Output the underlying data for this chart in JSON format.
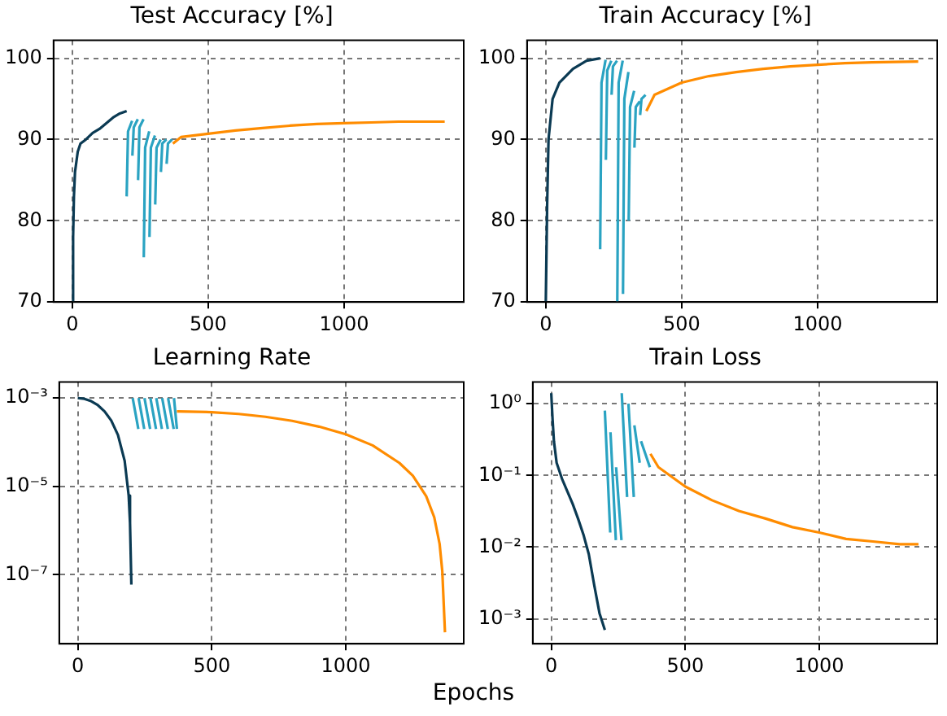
{
  "chart_data": [
    {
      "type": "line",
      "title": "Test Accuracy [%]",
      "xlim": [
        -69,
        1440
      ],
      "xticks": [
        0,
        500,
        1000
      ],
      "ylim": [
        70,
        102.2
      ],
      "yticks": [
        70,
        80,
        90,
        100
      ],
      "grid": true,
      "marker": "none",
      "series": [
        {
          "color": "#0b3a53",
          "x": [
            0,
            3,
            6,
            10,
            20,
            30,
            50,
            75,
            100,
            125,
            150,
            175,
            200
          ],
          "values": [
            70,
            78,
            83,
            86,
            88.5,
            89.5,
            90,
            90.8,
            91.3,
            92,
            92.7,
            93.2,
            93.5
          ]
        },
        {
          "color": "#2aa3c2",
          "x": [
            200,
            205,
            220,
            220.5,
            221,
            226,
            241,
            241.5,
            242,
            247,
            262,
            262.5,
            263,
            268,
            283,
            283.5,
            284,
            289,
            304,
            304.5,
            305,
            310,
            325,
            325.5,
            326,
            331,
            346,
            346.5,
            347,
            352,
            367
          ],
          "values": [
            83,
            91,
            92.3,
            null,
            88,
            91.5,
            92.5,
            null,
            85,
            91.5,
            92.5,
            null,
            75.5,
            89,
            91,
            null,
            78,
            89,
            90.5,
            null,
            82,
            89,
            90,
            null,
            86,
            89.5,
            90,
            null,
            87,
            89.5,
            90
          ]
        },
        {
          "color": "#ff8c00",
          "x": [
            370,
            400,
            500,
            600,
            700,
            800,
            900,
            1000,
            1100,
            1200,
            1300,
            1370
          ],
          "values": [
            89.5,
            90.3,
            90.7,
            91.1,
            91.4,
            91.7,
            91.9,
            92,
            92.1,
            92.2,
            92.2,
            92.2
          ]
        }
      ]
    },
    {
      "type": "line",
      "title": "Train Accuracy [%]",
      "xlim": [
        -69,
        1440
      ],
      "xticks": [
        0,
        500,
        1000
      ],
      "ylim": [
        70,
        102.2
      ],
      "yticks": [
        70,
        80,
        90,
        100
      ],
      "grid": true,
      "marker": "none",
      "series": [
        {
          "color": "#0b3a53",
          "x": [
            0,
            5,
            10,
            25,
            50,
            100,
            150,
            200
          ],
          "values": [
            70,
            82,
            90,
            95,
            97,
            98.7,
            99.7,
            100
          ]
        },
        {
          "color": "#2aa3c2",
          "x": [
            200,
            205,
            220,
            220.5,
            221,
            226,
            241,
            241.5,
            242,
            247,
            262,
            262.5,
            263,
            268,
            283,
            283.5,
            284,
            289,
            304,
            304.5,
            305,
            310,
            325,
            325.5,
            326,
            331,
            346,
            346.5,
            347,
            352,
            367
          ],
          "values": [
            76.5,
            97,
            99.8,
            null,
            87.5,
            98.5,
            99.7,
            null,
            95.5,
            99,
            99.7,
            null,
            70,
            97,
            99.7,
            null,
            71,
            95,
            98.3,
            null,
            80,
            94,
            96,
            null,
            89,
            94,
            94.7,
            null,
            93,
            95,
            95.5
          ]
        },
        {
          "color": "#ff8c00",
          "x": [
            370,
            400,
            500,
            600,
            700,
            800,
            900,
            1000,
            1100,
            1200,
            1370
          ],
          "values": [
            93.5,
            95.5,
            97,
            97.8,
            98.3,
            98.7,
            99,
            99.2,
            99.4,
            99.5,
            99.6
          ]
        }
      ]
    },
    {
      "type": "line",
      "title": "Learning Rate",
      "xlabel": "Epochs",
      "log": "y",
      "xlim": [
        -69,
        1440
      ],
      "xticks": [
        0,
        500,
        1000
      ],
      "ylim": [
        2.75e-09,
        0.0023
      ],
      "yticks": [
        {
          "value": 1e-07,
          "label": "10⁻⁷"
        },
        {
          "value": 1e-05,
          "label": "10⁻⁵"
        },
        {
          "value": 0.001,
          "label": "10⁻³"
        }
      ],
      "grid": true,
      "marker": "none",
      "series": [
        {
          "color": "#0b3a53",
          "x": [
            0,
            25,
            50,
            75,
            100,
            125,
            150,
            175,
            190,
            195,
            200
          ],
          "values": [
            0.001,
            0.00096,
            0.00085,
            0.00069,
            0.0005,
            0.00031,
            0.000146,
            3.8e-05,
            6.2e-06,
            1.5e-06,
            6e-08
          ]
        },
        {
          "color": "#2aa3c2",
          "x": [
            205,
            226,
            226.5,
            227,
            248,
            248.5,
            249,
            270,
            270.5,
            271,
            292,
            292.5,
            293,
            314,
            314.5,
            315,
            336,
            336.5,
            337,
            358,
            358.5,
            359,
            370
          ],
          "values": [
            0.001,
            0.0002,
            null,
            0.001,
            0.0002,
            null,
            0.001,
            0.0002,
            null,
            0.001,
            0.0002,
            null,
            0.001,
            0.0002,
            null,
            0.001,
            0.0002,
            null,
            0.001,
            0.0002,
            null,
            0.001,
            0.0002
          ]
        },
        {
          "color": "#ff8c00",
          "x": [
            370,
            500,
            600,
            700,
            800,
            900,
            1000,
            1100,
            1200,
            1250,
            1300,
            1330,
            1350,
            1360,
            1370
          ],
          "values": [
            0.0005,
            0.00048,
            0.000437,
            0.000377,
            0.000305,
            0.000226,
            0.000151,
            8.5e-05,
            3.4e-05,
            1.75e-05,
            6e-06,
            2e-06,
            5e-07,
            1.2e-07,
            5e-09
          ]
        }
      ]
    },
    {
      "type": "line",
      "title": "Train Loss",
      "log": "y",
      "xlim": [
        -69,
        1440
      ],
      "xticks": [
        0,
        500,
        1000
      ],
      "ylim": [
        0.00045,
        2
      ],
      "yticks": [
        {
          "value": 0.001,
          "label": "10⁻³"
        },
        {
          "value": 0.01,
          "label": "10⁻²"
        },
        {
          "value": 0.1,
          "label": "10⁻¹"
        },
        {
          "value": 1,
          "label": "10⁰"
        }
      ],
      "grid": true,
      "marker": "none",
      "series": [
        {
          "color": "#0b3a53",
          "x": [
            0,
            5,
            10,
            20,
            40,
            60,
            80,
            100,
            120,
            140,
            160,
            180,
            200
          ],
          "values": [
            1.4,
            0.6,
            0.3,
            0.15,
            0.09,
            0.06,
            0.04,
            0.025,
            0.015,
            0.008,
            0.003,
            0.0012,
            0.0007
          ]
        },
        {
          "color": "#2aa3c2",
          "x": [
            200,
            220,
            220.5,
            221,
            241,
            241.5,
            242,
            262,
            262.5,
            263,
            283,
            283.5,
            288,
            308,
            308.5,
            310,
            330,
            330.5,
            335,
            368
          ],
          "values": [
            0.8,
            0.016,
            null,
            0.4,
            0.0125,
            null,
            0.13,
            0.0125,
            null,
            1.4,
            0.05,
            null,
            1.0,
            0.05,
            null,
            0.5,
            0.15,
            null,
            0.3,
            0.13
          ]
        },
        {
          "color": "#ff8c00",
          "x": [
            370,
            400,
            500,
            600,
            700,
            800,
            900,
            1000,
            1100,
            1200,
            1300,
            1370
          ],
          "values": [
            0.2,
            0.13,
            0.07,
            0.045,
            0.032,
            0.025,
            0.019,
            0.016,
            0.013,
            0.012,
            0.011,
            0.011
          ]
        }
      ]
    }
  ]
}
